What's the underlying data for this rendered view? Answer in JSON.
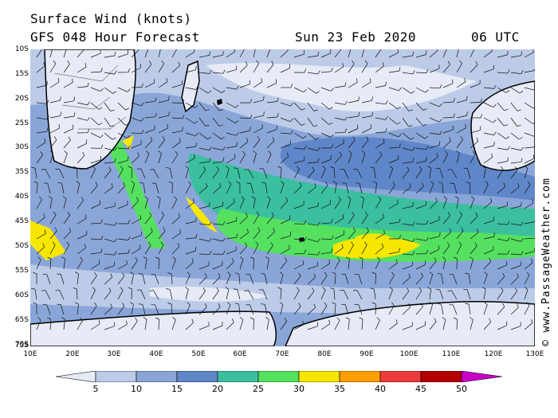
{
  "header": {
    "title": "Surface Wind (knots)",
    "model": "GFS 048 Hour Forecast",
    "date": "Sun 23 Feb 2020",
    "time": "06 UTC"
  },
  "map": {
    "lat_labels": [
      "10S",
      "15S",
      "20S",
      "25S",
      "30S",
      "35S",
      "40S",
      "45S",
      "50S",
      "55S",
      "60S",
      "65S",
      "70S",
      "75S"
    ],
    "lon_labels": [
      "10E",
      "20E",
      "30E",
      "40E",
      "50E",
      "60E",
      "70E",
      "80E",
      "90E",
      "100E",
      "110E",
      "120E",
      "130E"
    ]
  },
  "credit": "© www.PassageWeather.com",
  "scale": {
    "labels": [
      "5",
      "10",
      "15",
      "20",
      "25",
      "30",
      "35",
      "40",
      "45",
      "50"
    ],
    "colors": [
      "#e6ebf6",
      "#bccbe8",
      "#8aa6d8",
      "#5f86c8",
      "#3bbf9f",
      "#55e060",
      "#f7e600",
      "#ff9d00",
      "#ee3b3b",
      "#b40000",
      "#c800c8"
    ]
  }
}
